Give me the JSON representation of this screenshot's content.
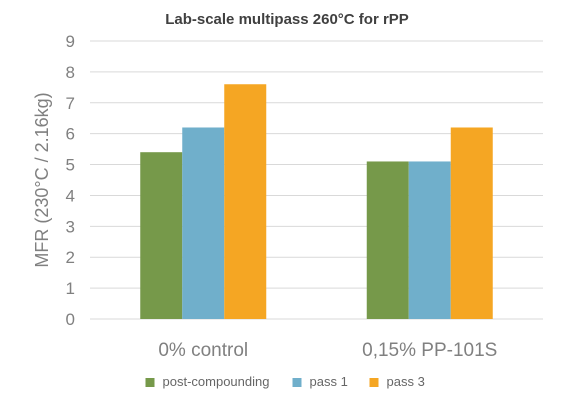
{
  "chart_data": {
    "type": "bar",
    "title": "Lab-scale multipass 260°C for rPP",
    "xlabel": "",
    "ylabel": "MFR (230°C / 2.16kg)",
    "ylim": [
      0,
      9
    ],
    "yticks": [
      0,
      1,
      2,
      3,
      4,
      5,
      6,
      7,
      8,
      9
    ],
    "grid": true,
    "legend_position": "bottom",
    "categories": [
      "0% control",
      "0,15% PP-101S"
    ],
    "series": [
      {
        "name": "post-compounding",
        "color": "#76994A",
        "values": [
          5.4,
          5.1
        ]
      },
      {
        "name": "pass 1",
        "color": "#70AFCB",
        "values": [
          6.2,
          5.1
        ]
      },
      {
        "name": "pass 3",
        "color": "#F5A623",
        "values": [
          7.6,
          6.2
        ]
      }
    ]
  }
}
